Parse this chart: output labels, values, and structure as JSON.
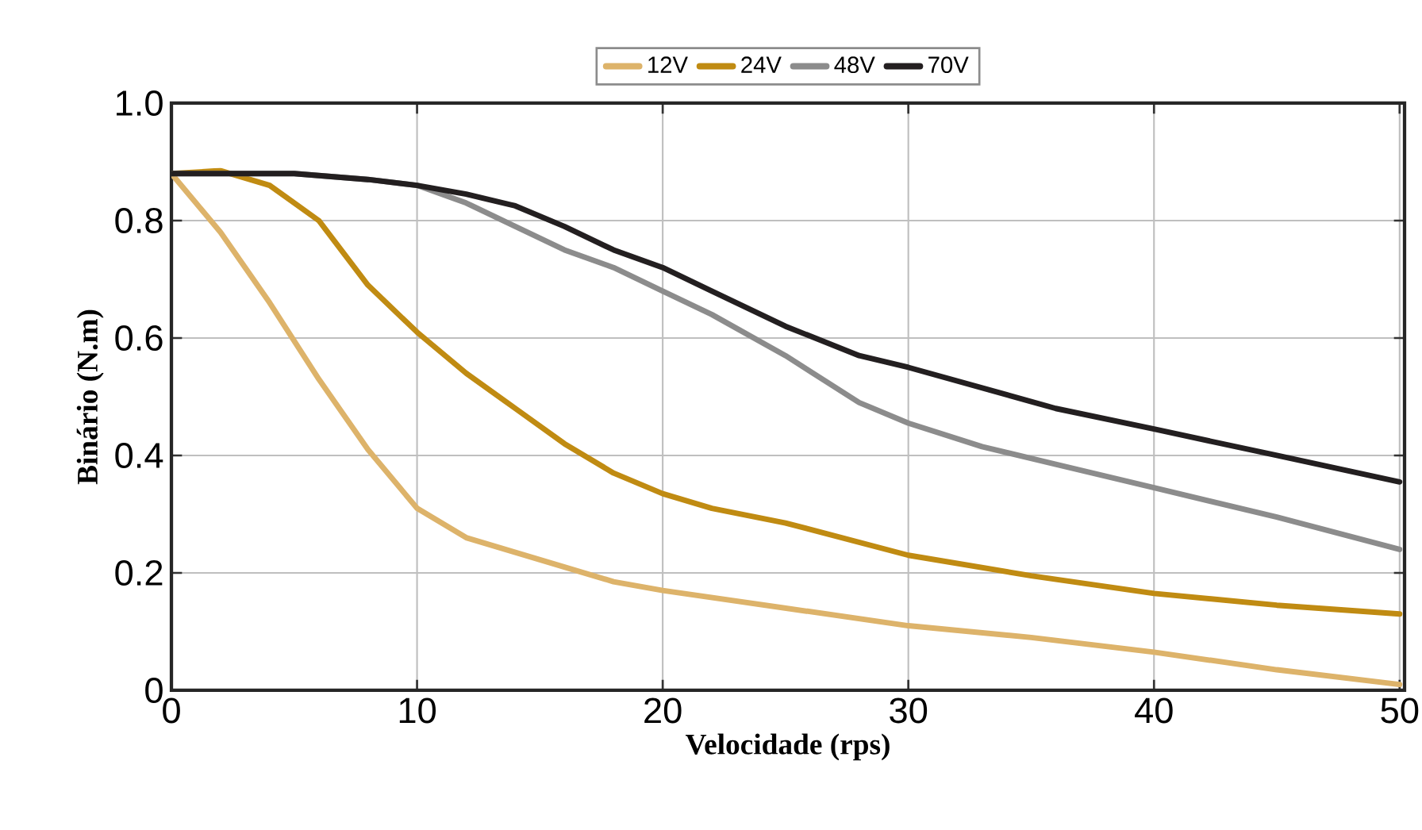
{
  "chart_data": {
    "type": "line",
    "xlabel": "Velocidade (rps)",
    "ylabel": "Binário (N.m)",
    "xlim": [
      0,
      50.2
    ],
    "xticks": [
      0,
      10,
      20,
      30,
      40,
      50
    ],
    "ylim": [
      0,
      1
    ],
    "yticks": [
      0,
      0.2,
      0.4,
      0.6,
      0.8,
      {
        "value": 1,
        "label": "1.0"
      }
    ],
    "grid": true,
    "legend": "top",
    "line_style": "solid",
    "series": [
      {
        "name": "12V",
        "color": "#ddb36a",
        "x": [
          0,
          2,
          4,
          6,
          8,
          10,
          12,
          14,
          16,
          18,
          20,
          25,
          30,
          35,
          40,
          45,
          50
        ],
        "values": [
          0.88,
          0.78,
          0.66,
          0.53,
          0.41,
          0.31,
          0.26,
          0.235,
          0.21,
          0.185,
          0.17,
          0.14,
          0.11,
          0.09,
          0.065,
          0.035,
          0.01
        ]
      },
      {
        "name": "24V",
        "color": "#c08b12",
        "x": [
          0,
          2,
          4,
          6,
          8,
          10,
          12,
          14,
          16,
          18,
          20,
          22,
          25,
          30,
          35,
          40,
          45,
          50
        ],
        "values": [
          0.88,
          0.885,
          0.86,
          0.8,
          0.69,
          0.61,
          0.54,
          0.48,
          0.42,
          0.37,
          0.335,
          0.31,
          0.285,
          0.23,
          0.195,
          0.165,
          0.145,
          0.13
        ]
      },
      {
        "name": "48V",
        "color": "#8c8c8c",
        "x": [
          0,
          5,
          8,
          10,
          12,
          14,
          16,
          18,
          20,
          22,
          25,
          28,
          30,
          33,
          36,
          40,
          45,
          50
        ],
        "values": [
          0.88,
          0.88,
          0.87,
          0.86,
          0.83,
          0.79,
          0.75,
          0.72,
          0.68,
          0.64,
          0.57,
          0.49,
          0.455,
          0.415,
          0.385,
          0.345,
          0.295,
          0.24
        ]
      },
      {
        "name": "70V",
        "color": "#231f20",
        "x": [
          0,
          5,
          8,
          10,
          12,
          14,
          16,
          18,
          20,
          22,
          25,
          28,
          30,
          33,
          36,
          40,
          45,
          50
        ],
        "values": [
          0.88,
          0.88,
          0.87,
          0.86,
          0.845,
          0.825,
          0.79,
          0.75,
          0.72,
          0.68,
          0.62,
          0.57,
          0.55,
          0.515,
          0.48,
          0.445,
          0.4,
          0.355
        ]
      }
    ]
  }
}
